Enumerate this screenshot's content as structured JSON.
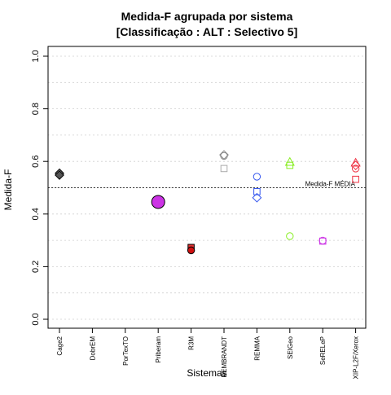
{
  "chart_data": {
    "type": "scatter",
    "title": "Medida-F agrupada por sistema",
    "subtitle": "[Classificação : ALT : Selectivo 5]",
    "xlabel": "Sistemas",
    "ylabel": "Medida-F",
    "ylim": [
      0,
      1
    ],
    "yticks": [
      "0.0",
      "0.2",
      "0.4",
      "0.6",
      "0.8",
      "1.0"
    ],
    "grid": "horizontal dotted",
    "categories": [
      "Cage2",
      "DobrEM",
      "PorTexTO",
      "Priberam",
      "R3M",
      "REMBRANDT",
      "REMMA",
      "SEIGeo",
      "SeRELeP",
      "XIP-L2F/Xerox"
    ],
    "reference_line": {
      "label": "Medida-F MÉDIA",
      "value": 0.5
    },
    "points": [
      {
        "category": "Cage2",
        "y": 0.555,
        "shape": "diamond",
        "color": "#000000",
        "fill": "#888888"
      },
      {
        "category": "Cage2",
        "y": 0.548,
        "shape": "diamond",
        "color": "#000000",
        "fill": "#555555"
      },
      {
        "category": "Priberam",
        "y": 0.446,
        "shape": "circle-large",
        "color": "#000000",
        "fill": "#CC33E5"
      },
      {
        "category": "R3M",
        "y": 0.273,
        "shape": "square",
        "color": "#000000",
        "fill": "#E03030"
      },
      {
        "category": "R3M",
        "y": 0.262,
        "shape": "circle",
        "color": "#000000",
        "fill": "#D01010"
      },
      {
        "category": "REMBRANDT",
        "y": 0.625,
        "shape": "diamond",
        "color": "#888888",
        "fill": "none"
      },
      {
        "category": "REMBRANDT",
        "y": 0.621,
        "shape": "circle",
        "color": "#888888",
        "fill": "none"
      },
      {
        "category": "REMBRANDT",
        "y": 0.573,
        "shape": "square",
        "color": "#AAAAAA",
        "fill": "none"
      },
      {
        "category": "REMMA",
        "y": 0.542,
        "shape": "circle",
        "color": "#3355EE",
        "fill": "none"
      },
      {
        "category": "REMMA",
        "y": 0.485,
        "shape": "square",
        "color": "#3355EE",
        "fill": "none"
      },
      {
        "category": "REMMA",
        "y": 0.462,
        "shape": "diamond",
        "color": "#3355EE",
        "fill": "none"
      },
      {
        "category": "SEIGeo",
        "y": 0.598,
        "shape": "triangle",
        "color": "#88EE22",
        "fill": "none"
      },
      {
        "category": "SEIGeo",
        "y": 0.585,
        "shape": "square",
        "color": "#88EE22",
        "fill": "none"
      },
      {
        "category": "SEIGeo",
        "y": 0.316,
        "shape": "circle",
        "color": "#88EE22",
        "fill": "none"
      },
      {
        "category": "SeRELeP",
        "y": 0.297,
        "shape": "square",
        "color": "#CC33E5",
        "fill": "none"
      },
      {
        "category": "SeRELeP",
        "y": 0.299,
        "shape": "circle",
        "color": "#CC33E5",
        "fill": "none"
      },
      {
        "category": "XIP-L2F/Xerox",
        "y": 0.595,
        "shape": "triangle",
        "color": "#EE3344",
        "fill": "none"
      },
      {
        "category": "XIP-L2F/Xerox",
        "y": 0.585,
        "shape": "diamond",
        "color": "#EE3344",
        "fill": "none"
      },
      {
        "category": "XIP-L2F/Xerox",
        "y": 0.573,
        "shape": "circle",
        "color": "#EE3344",
        "fill": "none"
      },
      {
        "category": "XIP-L2F/Xerox",
        "y": 0.532,
        "shape": "square",
        "color": "#EE3344",
        "fill": "none"
      }
    ]
  }
}
